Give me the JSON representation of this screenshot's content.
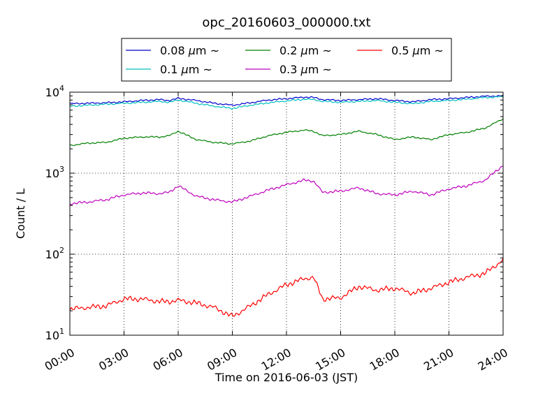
{
  "chart_data": {
    "type": "line",
    "title": "opc_20160603_000000.txt",
    "xlabel": "Time on 2016-06-03 (JST)",
    "ylabel": "Count / L",
    "yscale": "log",
    "xlim": [
      0,
      24
    ],
    "ylim": [
      10,
      10000
    ],
    "grid": true,
    "legend_position": "top-center",
    "x_ticks": [
      {
        "value": 0,
        "label": "00:00"
      },
      {
        "value": 3,
        "label": "03:00"
      },
      {
        "value": 6,
        "label": "06:00"
      },
      {
        "value": 9,
        "label": "09:00"
      },
      {
        "value": 12,
        "label": "12:00"
      },
      {
        "value": 15,
        "label": "15:00"
      },
      {
        "value": 18,
        "label": "18:00"
      },
      {
        "value": 21,
        "label": "21:00"
      },
      {
        "value": 24,
        "label": "24:00"
      }
    ],
    "y_ticks": [
      {
        "value": 10,
        "base": "10",
        "exp": "1"
      },
      {
        "value": 100,
        "base": "10",
        "exp": "2"
      },
      {
        "value": 1000,
        "base": "10",
        "exp": "3"
      },
      {
        "value": 10000,
        "base": "10",
        "exp": "4"
      }
    ],
    "x": [
      0,
      1,
      2,
      3,
      4,
      5,
      5.5,
      6,
      7,
      8,
      9,
      10,
      11,
      12,
      13,
      13.5,
      14,
      15,
      16,
      17,
      18,
      19,
      20,
      21,
      22,
      23,
      24
    ],
    "series": [
      {
        "name": "0.08 μm ~",
        "label_main": "0.08 ",
        "label_unit": "μm",
        "label_tail": " ~",
        "color": "#0000cc",
        "values": [
          7200,
          7300,
          7400,
          7600,
          7900,
          8100,
          7900,
          8400,
          7900,
          7300,
          6900,
          7400,
          8000,
          8300,
          8700,
          8600,
          8100,
          7900,
          8100,
          8300,
          7900,
          7600,
          8100,
          8300,
          8600,
          8900,
          9000
        ]
      },
      {
        "name": "0.1 μm ~",
        "label_main": "0.1 ",
        "label_unit": "μm",
        "label_tail": " ~",
        "color": "#00bfbf",
        "values": [
          6700,
          6900,
          7100,
          7300,
          7500,
          7700,
          7500,
          8000,
          7300,
          6700,
          6300,
          6900,
          7400,
          7800,
          8200,
          8100,
          7700,
          7500,
          7700,
          7900,
          7500,
          7200,
          7700,
          7900,
          8200,
          8600,
          8800
        ]
      },
      {
        "name": "0.2 μm ~",
        "label_main": "0.2 ",
        "label_unit": "μm",
        "label_tail": " ~",
        "color": "#008000",
        "values": [
          2200,
          2350,
          2400,
          2700,
          2800,
          2800,
          2900,
          3300,
          2600,
          2400,
          2300,
          2500,
          2900,
          3200,
          3400,
          3300,
          2900,
          3000,
          3300,
          3000,
          2600,
          2800,
          2600,
          3000,
          3200,
          3600,
          4700
        ]
      },
      {
        "name": "0.3 μm ~",
        "label_main": "0.3 ",
        "label_unit": "μm",
        "label_tail": " ~",
        "color": "#bf00bf",
        "values": [
          420,
          440,
          470,
          540,
          570,
          560,
          580,
          700,
          520,
          470,
          440,
          520,
          620,
          720,
          820,
          800,
          580,
          600,
          660,
          560,
          540,
          600,
          540,
          640,
          700,
          820,
          1250
        ]
      },
      {
        "name": "0.5 μm ~",
        "label_main": "0.5 ",
        "label_unit": "μm",
        "label_tail": " ~",
        "color": "#ff0000",
        "values": [
          21,
          22,
          23,
          28,
          28,
          26,
          26,
          27,
          25,
          22,
          17,
          23,
          32,
          42,
          50,
          52,
          28,
          29,
          40,
          36,
          38,
          33,
          38,
          45,
          52,
          58,
          85
        ]
      }
    ]
  }
}
